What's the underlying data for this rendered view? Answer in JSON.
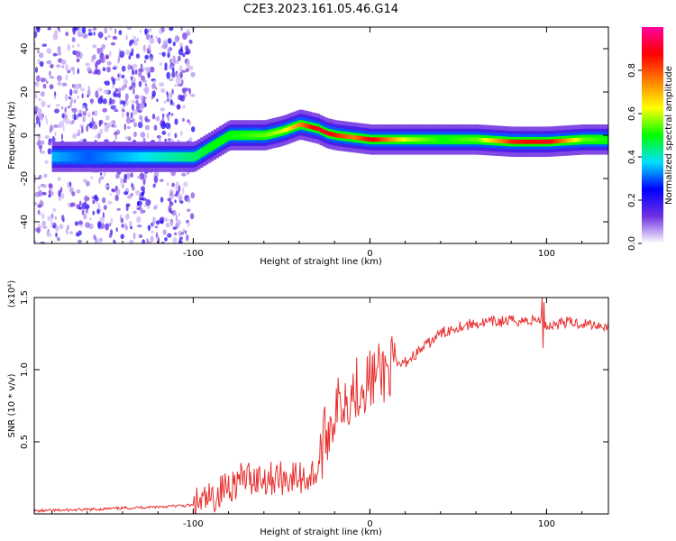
{
  "title": "C2E3.2023.161.05.46.G14",
  "chart_data": [
    {
      "type": "heatmap",
      "xlabel": "Height of straight line (km)",
      "ylabel": "Frequency (Hz)",
      "xlim": [
        -190,
        135
      ],
      "ylim": [
        -50,
        50
      ],
      "xticks": [
        -100,
        0,
        100
      ],
      "yticks": [
        -40,
        -20,
        0,
        20,
        40
      ],
      "colorbar": {
        "label": "Normalized spectral amplitude",
        "range": [
          0,
          1
        ],
        "ticks": [
          "0.0",
          "0.2",
          "0.4",
          "0.6",
          "0.8"
        ],
        "tick_values": [
          0.0,
          0.2,
          0.4,
          0.6,
          0.8
        ],
        "colors": [
          "#ffffff",
          "#7030e0",
          "#0000ff",
          "#00e0ff",
          "#00ff00",
          "#ffff00",
          "#ff8000",
          "#ff0000",
          "#ff00a0"
        ]
      },
      "noise_region_x": [
        -190,
        -100
      ],
      "ridge": {
        "x": [
          -180,
          -160,
          -140,
          -120,
          -100,
          -90,
          -80,
          -60,
          -50,
          -40,
          -35,
          -30,
          -25,
          -20,
          -10,
          0,
          20,
          40,
          60,
          80,
          100,
          120,
          135
        ],
        "freq": [
          -10,
          -10,
          -10,
          -10,
          -10,
          -5,
          0,
          0,
          2,
          5,
          4,
          3,
          1,
          0,
          -1,
          -2,
          -2,
          -2,
          -2,
          -3,
          -3,
          -2,
          -2
        ],
        "amp": [
          0.35,
          0.3,
          0.35,
          0.4,
          0.45,
          0.5,
          0.5,
          0.55,
          0.6,
          0.75,
          0.85,
          0.9,
          0.9,
          0.85,
          0.75,
          0.9,
          0.6,
          0.5,
          0.55,
          0.85,
          0.9,
          0.55,
          0.5
        ]
      }
    },
    {
      "type": "line",
      "xlabel": "Height of straight line (km)",
      "ylabel": "SNR (10 * v/v)",
      "y_scale_label": "(x10⁴)",
      "xlim": [
        -190,
        135
      ],
      "ylim": [
        0,
        1.5
      ],
      "xticks": [
        -100,
        0,
        100
      ],
      "yticks": [
        "0.5",
        "1.0",
        "1.5"
      ],
      "ytick_values": [
        0.5,
        1.0,
        1.5
      ],
      "color": "#e83030",
      "series": [
        {
          "x": [
            -190,
            -160,
            -140,
            -120,
            -100,
            -90,
            -80,
            -70,
            -60,
            -50,
            -40,
            -35,
            -30,
            -25,
            -20,
            -15,
            -10,
            -5,
            0,
            10,
            20,
            30,
            40,
            50,
            60,
            70,
            80,
            90,
            98,
            100,
            110,
            120,
            130,
            135
          ],
          "values": [
            0.02,
            0.03,
            0.04,
            0.05,
            0.06,
            0.1,
            0.2,
            0.25,
            0.25,
            0.25,
            0.25,
            0.25,
            0.3,
            0.55,
            0.7,
            0.8,
            0.85,
            0.9,
            0.93,
            1.0,
            1.05,
            1.15,
            1.25,
            1.3,
            1.32,
            1.33,
            1.34,
            1.34,
            1.35,
            1.3,
            1.33,
            1.32,
            1.31,
            1.3
          ]
        }
      ]
    }
  ]
}
